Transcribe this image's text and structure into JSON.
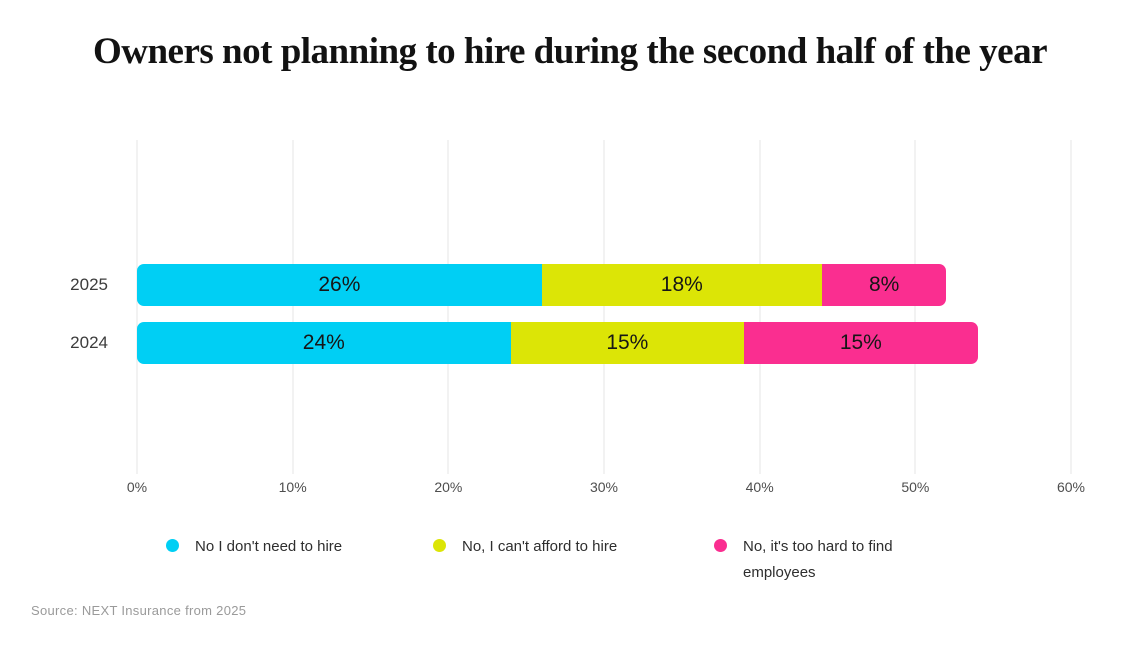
{
  "title": "Owners not planning to hire during the second half of the year",
  "source": "Source: NEXT Insurance from 2025",
  "chart_data": {
    "type": "bar",
    "orientation": "horizontal",
    "stacked": true,
    "title": "Owners not planning to hire during the second half of the year",
    "categories": [
      "2025",
      "2024"
    ],
    "series": [
      {
        "name": "No I don't need to hire",
        "color": "#00CFF4",
        "values": [
          26,
          24
        ]
      },
      {
        "name": "No, I can't afford to hire",
        "color": "#DCE506",
        "values": [
          18,
          15
        ]
      },
      {
        "name": "No, it's too hard to find employees",
        "color": "#FA2E90",
        "values": [
          8,
          15
        ]
      }
    ],
    "value_label_suffix": "%",
    "xlabel": "",
    "ylabel": "",
    "xlim": [
      0,
      60
    ],
    "xticks": [
      "0%",
      "10%",
      "20%",
      "30%",
      "40%",
      "50%",
      "60%"
    ],
    "grid": "vertical",
    "gridline_color": "#e4e4e4",
    "legend_position": "bottom"
  }
}
